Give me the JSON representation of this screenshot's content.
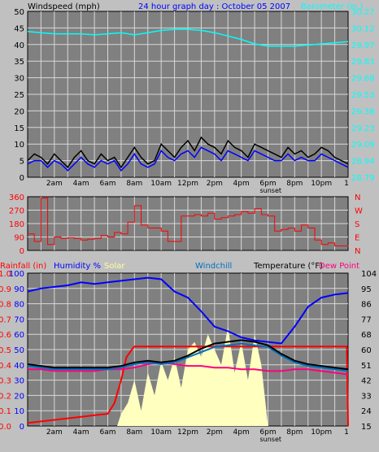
{
  "colors": {
    "background": "#c0c0c0",
    "plot_bg": "#808080",
    "grid": "#d8d8d8",
    "windspeed": "#000000",
    "gust": "#0000ff",
    "barometer": "#00ffff",
    "direction": "#ff0000",
    "humidity": "#0000ff",
    "solar": "#ffffc0",
    "windchill": "#0070c0",
    "temperature": "#000000",
    "dewpoint": "#ff0080",
    "rainfall": "#ff0000",
    "title": "#0000ff"
  },
  "header": {
    "windspeed_label": "Windspeed (mph)",
    "title": "24 hour graph day : October 05 2007",
    "barometer_label": "Barometer (in.)"
  },
  "bottom_header": {
    "rainfall": "Rainfall (in)",
    "humidity": "Humidity %",
    "solar": "Solar",
    "windchill": "Windchill",
    "temperature": "Temperature (°F)",
    "dewpoint": "Dew Point"
  },
  "time_labels": [
    "2am",
    "4am",
    "6am",
    "8am",
    "10am",
    "12pm",
    "2pm",
    "4pm",
    "6pm",
    "8pm",
    "10pm"
  ],
  "sunset_label": "sunset",
  "end_tick_label": "1",
  "chart_data": [
    {
      "type": "line",
      "name": "wind",
      "x_unit": "hour of day",
      "xlim": [
        0,
        24
      ],
      "ylabel": "Windspeed (mph)",
      "ylim": [
        0,
        50
      ],
      "yticks": [
        "0",
        "5",
        "10",
        "15",
        "20",
        "25",
        "30",
        "35",
        "40",
        "45",
        "50"
      ],
      "y2label": "Barometer (in.)",
      "y2lim": [
        28.79,
        30.27
      ],
      "y2ticks": [
        "28.79",
        "28.94",
        "29.09",
        "29.23",
        "29.38",
        "29.53",
        "29.68",
        "29.83",
        "29.97",
        "30.12",
        "30.27"
      ],
      "series": [
        {
          "name": "Windspeed",
          "x": [
            0,
            0.5,
            1,
            1.5,
            2,
            2.5,
            3,
            3.5,
            4,
            4.5,
            5,
            5.5,
            6,
            6.5,
            7,
            7.5,
            8,
            8.5,
            9,
            9.5,
            10,
            10.5,
            11,
            11.5,
            12,
            12.5,
            13,
            13.5,
            14,
            14.5,
            15,
            15.5,
            16,
            16.5,
            17,
            17.5,
            18,
            18.5,
            19,
            19.5,
            20,
            20.5,
            21,
            21.5,
            22,
            22.5,
            23,
            23.5,
            24
          ],
          "y": [
            5,
            7,
            6,
            4,
            7,
            5,
            3,
            6,
            8,
            5,
            4,
            7,
            5,
            6,
            3,
            6,
            9,
            6,
            4,
            5,
            10,
            8,
            6,
            9,
            11,
            8,
            12,
            10,
            9,
            7,
            11,
            9,
            8,
            6,
            10,
            9,
            8,
            7,
            6,
            9,
            7,
            8,
            6,
            7,
            9,
            8,
            6,
            5,
            4
          ]
        },
        {
          "name": "Gust",
          "x": [
            0,
            0.5,
            1,
            1.5,
            2,
            2.5,
            3,
            3.5,
            4,
            4.5,
            5,
            5.5,
            6,
            6.5,
            7,
            7.5,
            8,
            8.5,
            9,
            9.5,
            10,
            10.5,
            11,
            11.5,
            12,
            12.5,
            13,
            13.5,
            14,
            14.5,
            15,
            15.5,
            16,
            16.5,
            17,
            17.5,
            18,
            18.5,
            19,
            19.5,
            20,
            20.5,
            21,
            21.5,
            22,
            22.5,
            23,
            23.5,
            24
          ],
          "y": [
            4,
            5,
            5,
            3,
            5,
            4,
            2,
            4,
            6,
            4,
            3,
            5,
            4,
            5,
            2,
            4,
            7,
            4,
            3,
            4,
            8,
            6,
            5,
            7,
            8,
            6,
            9,
            8,
            7,
            5,
            8,
            7,
            6,
            5,
            8,
            7,
            6,
            5,
            5,
            7,
            5,
            6,
            5,
            5,
            7,
            6,
            5,
            4,
            3
          ]
        },
        {
          "name": "Barometer",
          "axis": "right",
          "x": [
            0,
            1,
            2,
            3,
            4,
            5,
            6,
            7,
            8,
            9,
            10,
            11,
            12,
            13,
            14,
            15,
            16,
            17,
            18,
            19,
            20,
            21,
            22,
            23,
            24
          ],
          "y": [
            30.09,
            30.08,
            30.07,
            30.07,
            30.07,
            30.06,
            30.07,
            30.08,
            30.06,
            30.08,
            30.1,
            30.11,
            30.11,
            30.1,
            30.08,
            30.05,
            30.02,
            29.98,
            29.96,
            29.96,
            29.96,
            29.97,
            29.98,
            29.99,
            30.0
          ]
        }
      ]
    },
    {
      "type": "line",
      "name": "wind direction",
      "x_unit": "hour of day",
      "xlim": [
        0,
        24
      ],
      "ylim": [
        0,
        360
      ],
      "yticks": [
        "0",
        "90",
        "180",
        "270",
        "360"
      ],
      "y2ticks": [
        "N",
        "E",
        "S",
        "W",
        "N"
      ],
      "series": [
        {
          "name": "Wind Direction",
          "x": [
            0,
            0.5,
            1,
            1.5,
            2,
            2.5,
            3,
            3.5,
            4,
            4.5,
            5,
            5.5,
            6,
            6.5,
            7,
            7.5,
            8,
            8.5,
            9,
            9.5,
            10,
            10.5,
            11,
            11.5,
            12,
            12.5,
            13,
            13.5,
            14,
            14.5,
            15,
            15.5,
            16,
            16.5,
            17,
            17.5,
            18,
            18.5,
            19,
            19.5,
            20,
            20.5,
            21,
            21.5,
            22,
            22.5,
            23,
            23.5,
            24
          ],
          "y": [
            110,
            60,
            350,
            40,
            90,
            80,
            85,
            80,
            70,
            75,
            80,
            100,
            90,
            120,
            110,
            190,
            300,
            170,
            150,
            150,
            130,
            60,
            60,
            230,
            230,
            240,
            230,
            250,
            210,
            220,
            230,
            240,
            260,
            250,
            280,
            240,
            230,
            130,
            140,
            150,
            130,
            170,
            150,
            70,
            40,
            50,
            30,
            30,
            25
          ]
        }
      ]
    },
    {
      "type": "line",
      "name": "temperature",
      "x_unit": "hour of day",
      "xlim": [
        0,
        24
      ],
      "ylabel": "Humidity % / Rainfall (in)",
      "ylim": [
        0,
        100
      ],
      "yticks": [
        "0",
        "10",
        "20",
        "30",
        "40",
        "50",
        "60",
        "70",
        "80",
        "90",
        "100"
      ],
      "y_rain_ticks": [
        "0.0",
        "0.1",
        "0.2",
        "0.3",
        "0.4",
        "0.5",
        "0.6",
        "0.7",
        "0.8",
        "0.9",
        "1.0"
      ],
      "y2label": "Temperature (°F)",
      "y2lim": [
        15,
        104
      ],
      "y2ticks": [
        "15",
        "24",
        "33",
        "42",
        "51",
        "60",
        "68",
        "77",
        "86",
        "95",
        "104"
      ],
      "series": [
        {
          "name": "Humidity",
          "x": [
            0,
            1,
            2,
            3,
            4,
            5,
            6,
            7,
            8,
            9,
            10,
            11,
            12,
            13,
            14,
            15,
            16,
            17,
            18,
            19,
            20,
            21,
            22,
            23,
            24
          ],
          "y": [
            88,
            90,
            91,
            92,
            94,
            93,
            94,
            95,
            96,
            97,
            96,
            88,
            84,
            75,
            65,
            62,
            58,
            56,
            55,
            54,
            65,
            78,
            84,
            86,
            87
          ]
        },
        {
          "name": "Temperature",
          "axis": "right",
          "x": [
            0,
            1,
            2,
            3,
            4,
            5,
            6,
            7,
            8,
            9,
            10,
            11,
            12,
            13,
            14,
            15,
            16,
            17,
            18,
            19,
            20,
            21,
            22,
            23,
            24
          ],
          "y": [
            51,
            50,
            49,
            49,
            49,
            49,
            49,
            50,
            52,
            53,
            52,
            53,
            56,
            60,
            63,
            64,
            65,
            64,
            62,
            57,
            53,
            51,
            50,
            49,
            48
          ]
        },
        {
          "name": "Windchill",
          "axis": "right",
          "x": [
            0,
            1,
            2,
            3,
            4,
            5,
            6,
            7,
            8,
            9,
            10,
            11,
            12,
            13,
            14,
            15,
            16,
            17,
            18,
            19,
            20,
            21,
            22,
            23,
            24
          ],
          "y": [
            50,
            49,
            48,
            48,
            48,
            48,
            48,
            49,
            51,
            52,
            51,
            52,
            55,
            58,
            61,
            62,
            63,
            62,
            61,
            56,
            52,
            50,
            49,
            48,
            47
          ]
        },
        {
          "name": "Dew Point",
          "axis": "right",
          "x": [
            0,
            1,
            2,
            3,
            4,
            5,
            6,
            7,
            8,
            9,
            10,
            11,
            12,
            13,
            14,
            15,
            16,
            17,
            18,
            19,
            20,
            21,
            22,
            23,
            24
          ],
          "y": [
            48,
            48,
            47,
            47,
            47,
            47,
            48,
            48,
            49,
            51,
            52,
            51,
            50,
            50,
            49,
            49,
            48,
            48,
            47,
            47,
            48,
            48,
            47,
            46,
            45
          ]
        },
        {
          "name": "Solar",
          "x": [
            0,
            6,
            6.7,
            7,
            7.5,
            8,
            8.5,
            9,
            9.5,
            10,
            10.5,
            11,
            11.5,
            12,
            12.5,
            13,
            13.5,
            14,
            14.5,
            15,
            15.5,
            16,
            16.5,
            17,
            17.5,
            18,
            24
          ],
          "y": [
            0,
            0,
            0,
            8,
            15,
            30,
            10,
            35,
            20,
            42,
            30,
            45,
            25,
            50,
            55,
            45,
            60,
            50,
            40,
            65,
            35,
            55,
            30,
            60,
            40,
            0,
            0
          ]
        },
        {
          "name": "Rainfall",
          "x": [
            0,
            1,
            2,
            3,
            4,
            5,
            6,
            6.5,
            7,
            7.4,
            7.8,
            8,
            23.9,
            24
          ],
          "y": [
            0.02,
            0.03,
            0.04,
            0.05,
            0.06,
            0.07,
            0.08,
            0.15,
            0.3,
            0.45,
            0.5,
            0.52,
            0.52,
            0.0
          ]
        }
      ]
    }
  ]
}
